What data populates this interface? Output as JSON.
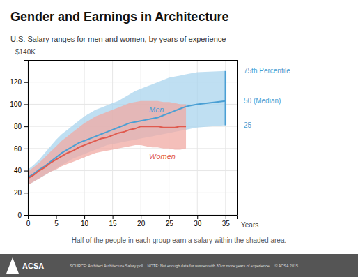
{
  "chart_data": {
    "type": "line",
    "title": "Gender and Earnings in Architecture",
    "subtitle": "U.S. Salary ranges for men and women, by years of experience",
    "xlabel": "Years",
    "ylabel": "$140K",
    "annotations": [
      "75th Percentile",
      "50 (Median)",
      "25",
      "Half of the people in each group earn a salary within the shaded area.",
      "SOURCE: Architect Architecture Salary poll    NOTE: Not enough data for women with 30 or more years of experience.    © ACSA 2015",
      "ACSA"
    ],
    "xlim": [
      0,
      37
    ],
    "ylim": [
      0,
      140
    ],
    "xticks": [
      0,
      5,
      10,
      15,
      20,
      25,
      30,
      35
    ],
    "yticks": [
      0,
      20,
      40,
      60,
      80,
      100,
      120
    ],
    "grid": true,
    "series": [
      {
        "type": "area",
        "color": "#aad4ee",
        "x": [
          0,
          1,
          2,
          3,
          4,
          5,
          6,
          7,
          8,
          9,
          10,
          11,
          12,
          13,
          14,
          15,
          16,
          17,
          18,
          19,
          20,
          21,
          22,
          23,
          24,
          25,
          26,
          27,
          28,
          29,
          30,
          35
        ],
        "values": [
          41,
          45,
          50,
          56,
          62,
          68,
          73,
          77,
          81,
          85,
          89,
          92,
          95,
          97,
          99,
          101,
          103,
          106,
          109,
          112,
          114,
          116,
          118,
          120,
          122,
          124,
          125,
          126,
          127,
          128,
          129,
          130
        ],
        "low": [
          27,
          30,
          33,
          36,
          39,
          42,
          45,
          48,
          51,
          53,
          55,
          57,
          59,
          61,
          63,
          64,
          65,
          66,
          67,
          68,
          69,
          70,
          71,
          72,
          73,
          74,
          75,
          76,
          77,
          78,
          79,
          81
        ]
      },
      {
        "type": "area",
        "color": "#f0a9a3",
        "x": [
          0,
          1,
          2,
          3,
          4,
          5,
          6,
          7,
          8,
          9,
          10,
          11,
          12,
          13,
          14,
          15,
          16,
          17,
          18,
          19,
          20,
          21,
          22,
          23,
          24,
          25,
          26,
          27,
          28
        ],
        "values": [
          39,
          43,
          47,
          52,
          57,
          62,
          67,
          71,
          75,
          79,
          83,
          86,
          89,
          91,
          93,
          95,
          97,
          99,
          101,
          102,
          103,
          103,
          103,
          103,
          102,
          102,
          101,
          100,
          100
        ],
        "low": [
          27,
          30,
          33,
          36,
          39,
          41,
          44,
          46,
          48,
          50,
          52,
          54,
          56,
          57,
          58,
          59,
          60,
          61,
          62,
          63,
          63,
          62,
          61,
          61,
          60,
          60,
          59,
          59,
          60
        ]
      },
      {
        "type": "line",
        "name": "Men",
        "color": "#4a9fd4",
        "x": [
          0,
          1,
          2,
          3,
          4,
          5,
          6,
          7,
          8,
          9,
          10,
          11,
          12,
          13,
          14,
          15,
          16,
          17,
          18,
          19,
          20,
          21,
          22,
          23,
          24,
          25,
          26,
          27,
          28,
          29,
          30,
          35
        ],
        "values": [
          34,
          37,
          41,
          44,
          48,
          52,
          56,
          59,
          62,
          65,
          67,
          69,
          71,
          73,
          75,
          77,
          79,
          81,
          83,
          84,
          85,
          86,
          87,
          88,
          90,
          92,
          94,
          96,
          98,
          99,
          100,
          103
        ]
      },
      {
        "type": "line",
        "name": "Women",
        "color": "#e05a4e",
        "x": [
          0,
          1,
          2,
          3,
          4,
          5,
          6,
          7,
          8,
          9,
          10,
          11,
          12,
          13,
          14,
          15,
          16,
          17,
          18,
          19,
          20,
          21,
          22,
          23,
          24,
          25,
          26,
          27,
          28
        ],
        "values": [
          33,
          36,
          40,
          43,
          47,
          50,
          53,
          56,
          58,
          61,
          63,
          65,
          67,
          69,
          70,
          72,
          74,
          75,
          77,
          78,
          80,
          80,
          80,
          80,
          79,
          79,
          79,
          80,
          80
        ]
      }
    ]
  }
}
